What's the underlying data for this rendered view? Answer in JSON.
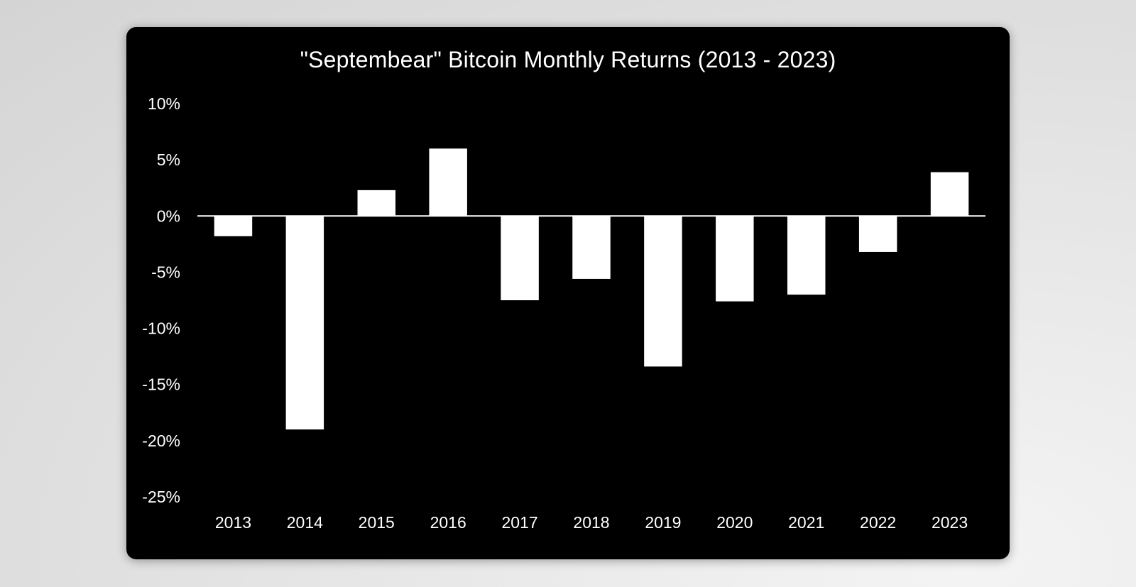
{
  "chart_data": {
    "type": "bar",
    "title": "\"Septembear\" Bitcoin Monthly Returns (2013 - 2023)",
    "xlabel": "",
    "ylabel": "",
    "categories": [
      "2013",
      "2014",
      "2015",
      "2016",
      "2017",
      "2018",
      "2019",
      "2020",
      "2021",
      "2022",
      "2023"
    ],
    "values": [
      -1.8,
      -19.0,
      2.3,
      6.0,
      -7.5,
      -5.6,
      -13.4,
      -7.6,
      -7.0,
      -3.2,
      3.9
    ],
    "yticks": [
      10,
      5,
      0,
      -5,
      -10,
      -15,
      -20,
      -25
    ],
    "ytick_labels": [
      "10%",
      "5%",
      "0%",
      "-5%",
      "-10%",
      "-15%",
      "-20%",
      "-25%"
    ],
    "ylim": [
      -25,
      10
    ],
    "grid": false,
    "legend": "none",
    "colors": {
      "background": "#000000",
      "bar": "#ffffff",
      "axis": "#ffffff",
      "text": "#ffffff"
    }
  }
}
